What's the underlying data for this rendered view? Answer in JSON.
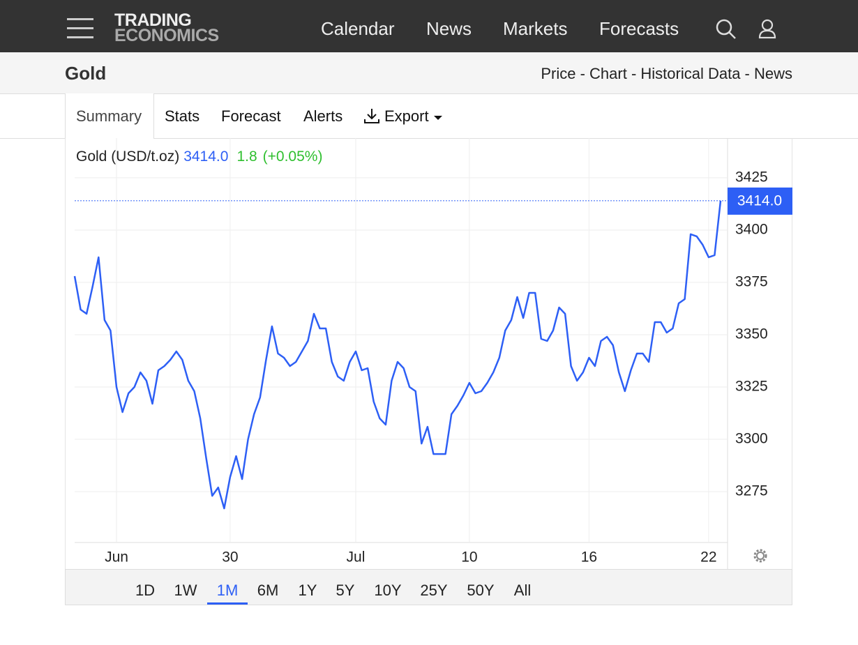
{
  "nav": {
    "logo_top": "TRADING",
    "logo_bottom": "ECONOMICS",
    "links": [
      "Calendar",
      "News",
      "Markets",
      "Forecasts"
    ]
  },
  "header": {
    "title": "Gold",
    "breadcrumb": "Price - Chart - Historical Data - News"
  },
  "tabs": [
    "Summary",
    "Stats",
    "Forecast",
    "Alerts",
    "Export"
  ],
  "quote": {
    "name": "Gold (USD/t.oz)",
    "price": "3414.0",
    "change": "1.8",
    "change_pct": "(+0.05%)"
  },
  "ranges": [
    "1D",
    "1W",
    "1M",
    "6M",
    "1Y",
    "5Y",
    "10Y",
    "25Y",
    "50Y",
    "All"
  ],
  "selected_range": "1M",
  "chart_data": {
    "type": "line",
    "categories": [
      null,
      null,
      null,
      null,
      null,
      null,
      null,
      "Jun",
      null,
      null,
      null,
      null,
      null,
      null,
      null,
      null,
      null,
      null,
      null,
      null,
      null,
      null,
      null,
      null,
      null,
      null,
      "30",
      null,
      null,
      null,
      null,
      null,
      null,
      null,
      null,
      null,
      null,
      null,
      null,
      null,
      null,
      null,
      null,
      null,
      null,
      null,
      null,
      "Jul",
      null,
      null,
      null,
      null,
      null,
      null,
      null,
      null,
      null,
      null,
      null,
      null,
      null,
      null,
      null,
      null,
      null,
      null,
      "10",
      null,
      null,
      null,
      null,
      null,
      null,
      null,
      null,
      null,
      null,
      null,
      null,
      null,
      null,
      null,
      null,
      null,
      null,
      null,
      "16",
      null,
      null,
      null,
      null,
      null,
      null,
      null,
      null,
      null,
      null,
      null,
      null,
      null,
      null,
      null,
      null,
      null,
      null,
      null,
      "22",
      null,
      null
    ],
    "series": [
      {
        "name": "Gold (USD/t.oz)",
        "color": "#2d5ff5",
        "values": [
          3378,
          3362,
          3360,
          3373,
          3387,
          3357,
          3352,
          3325,
          3313,
          3322,
          3325,
          3332,
          3328,
          3317,
          3333,
          3335,
          3338,
          3342,
          3338,
          3328,
          3323,
          3310,
          3291,
          3273,
          3277,
          3267,
          3282,
          3292,
          3281,
          3300,
          3312,
          3320,
          3338,
          3354,
          3341,
          3339,
          3335,
          3337,
          3342,
          3347,
          3360,
          3353,
          3353,
          3337,
          3330,
          3328,
          3337,
          3342,
          3333,
          3334,
          3318,
          3310,
          3307,
          3328,
          3337,
          3334,
          3325,
          3323,
          3298,
          3306,
          3293,
          3293,
          3293,
          3312,
          3316,
          3321,
          3327,
          3322,
          3323,
          3327,
          3332,
          3339,
          3352,
          3357,
          3368,
          3358,
          3370,
          3370,
          3348,
          3347,
          3352,
          3363,
          3360,
          3335,
          3328,
          3332,
          3339,
          3335,
          3347,
          3349,
          3345,
          3332,
          3323,
          3333,
          3341,
          3341,
          3337,
          3356,
          3356,
          3351,
          3353,
          3365,
          3367,
          3398,
          3397,
          3393,
          3387,
          3388,
          3414
        ]
      }
    ],
    "ylim": [
      3250.7,
      3443.3
    ],
    "yticks": [
      3275,
      3300,
      3325,
      3350,
      3375,
      3400,
      3425
    ],
    "grid": true
  }
}
